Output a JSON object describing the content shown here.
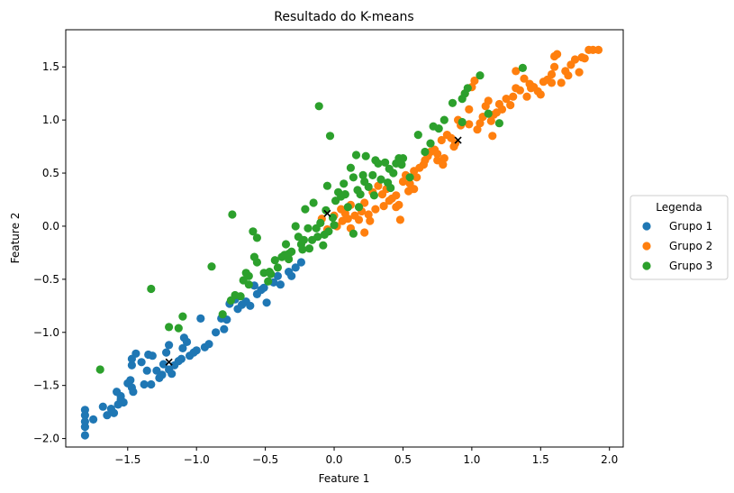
{
  "chart_data": {
    "type": "scatter",
    "title": "Resultado do K-means",
    "xlabel": "Feature 1",
    "ylabel": "Feature 2",
    "xlim": [
      -1.95,
      2.1
    ],
    "ylim": [
      -2.08,
      1.85
    ],
    "xticks": [
      -1.5,
      -1.0,
      -0.5,
      0.0,
      0.5,
      1.0,
      1.5,
      2.0
    ],
    "xtick_labels": [
      "−1.5",
      "−1.0",
      "−0.5",
      "0.0",
      "0.5",
      "1.0",
      "1.5",
      "2.0"
    ],
    "yticks": [
      -2.0,
      -1.5,
      -1.0,
      -0.5,
      0.0,
      0.5,
      1.0,
      1.5
    ],
    "ytick_labels": [
      "−2.0",
      "−1.5",
      "−1.0",
      "−0.5",
      "0.0",
      "0.5",
      "1.0",
      "1.5"
    ],
    "grid": false,
    "legend": {
      "title": "Legenda",
      "placement": "center-right-outside"
    },
    "series": [
      {
        "name": "Grupo 1",
        "color": "#1f77b4",
        "points": [
          [
            -1.81,
            -1.97
          ],
          [
            -1.81,
            -1.89
          ],
          [
            -1.81,
            -1.84
          ],
          [
            -1.81,
            -1.78
          ],
          [
            -1.81,
            -1.73
          ],
          [
            -1.75,
            -1.82
          ],
          [
            -1.68,
            -1.7
          ],
          [
            -1.65,
            -1.78
          ],
          [
            -1.62,
            -1.72
          ],
          [
            -1.6,
            -1.76
          ],
          [
            -1.58,
            -1.56
          ],
          [
            -1.57,
            -1.68
          ],
          [
            -1.55,
            -1.6
          ],
          [
            -1.53,
            -1.66
          ],
          [
            -1.5,
            -1.48
          ],
          [
            -1.48,
            -1.45
          ],
          [
            -1.47,
            -1.52
          ],
          [
            -1.46,
            -1.56
          ],
          [
            -1.47,
            -1.31
          ],
          [
            -1.47,
            -1.25
          ],
          [
            -1.44,
            -1.2
          ],
          [
            -1.4,
            -1.28
          ],
          [
            -1.38,
            -1.49
          ],
          [
            -1.36,
            -1.36
          ],
          [
            -1.33,
            -1.49
          ],
          [
            -1.32,
            -1.22
          ],
          [
            -1.29,
            -1.36
          ],
          [
            -1.27,
            -1.43
          ],
          [
            -1.25,
            -1.4
          ],
          [
            -1.24,
            -1.3
          ],
          [
            -1.22,
            -1.19
          ],
          [
            -1.2,
            -1.12
          ],
          [
            -1.2,
            -1.35
          ],
          [
            -1.18,
            -1.39
          ],
          [
            -1.16,
            -1.31
          ],
          [
            -1.13,
            -1.27
          ],
          [
            -1.11,
            -1.25
          ],
          [
            -1.1,
            -1.15
          ],
          [
            -1.09,
            -1.05
          ],
          [
            -1.07,
            -1.09
          ],
          [
            -1.05,
            -1.22
          ],
          [
            -1.02,
            -1.19
          ],
          [
            -1.0,
            -1.17
          ],
          [
            -0.94,
            -1.14
          ],
          [
            -0.91,
            -1.11
          ],
          [
            -0.86,
            -1.0
          ],
          [
            -0.82,
            -0.87
          ],
          [
            -0.8,
            -0.97
          ],
          [
            -0.78,
            -0.88
          ],
          [
            -0.76,
            -0.73
          ],
          [
            -0.72,
            -0.69
          ],
          [
            -0.7,
            -0.78
          ],
          [
            -0.67,
            -0.74
          ],
          [
            -0.64,
            -0.71
          ],
          [
            -0.61,
            -0.75
          ],
          [
            -0.58,
            -0.56
          ],
          [
            -0.56,
            -0.64
          ],
          [
            -0.53,
            -0.6
          ],
          [
            -0.51,
            -0.58
          ],
          [
            -0.49,
            -0.72
          ],
          [
            -0.44,
            -0.53
          ],
          [
            -0.41,
            -0.47
          ],
          [
            -0.39,
            -0.55
          ],
          [
            -0.33,
            -0.43
          ],
          [
            -0.31,
            -0.47
          ],
          [
            -0.28,
            -0.39
          ],
          [
            -0.24,
            -0.34
          ],
          [
            -0.97,
            -0.87
          ],
          [
            -1.35,
            -1.21
          ],
          [
            -1.55,
            -1.63
          ]
        ]
      },
      {
        "name": "Grupo 2",
        "color": "#ff7f0e",
        "points": [
          [
            -0.09,
            0.07
          ],
          [
            -0.05,
            -0.03
          ],
          [
            0.0,
            0.1
          ],
          [
            0.02,
            0.0
          ],
          [
            0.05,
            0.16
          ],
          [
            0.08,
            0.12
          ],
          [
            0.1,
            0.07
          ],
          [
            0.12,
            0.2
          ],
          [
            0.15,
            0.1
          ],
          [
            0.18,
            0.06
          ],
          [
            0.2,
            0.14
          ],
          [
            0.22,
            0.22
          ],
          [
            0.25,
            0.11
          ],
          [
            0.28,
            0.32
          ],
          [
            0.3,
            0.16
          ],
          [
            0.32,
            0.38
          ],
          [
            0.35,
            0.3
          ],
          [
            0.38,
            0.35
          ],
          [
            0.4,
            0.24
          ],
          [
            0.42,
            0.26
          ],
          [
            0.45,
            0.29
          ],
          [
            0.47,
            0.2
          ],
          [
            0.5,
            0.42
          ],
          [
            0.52,
            0.48
          ],
          [
            0.55,
            0.4
          ],
          [
            0.58,
            0.52
          ],
          [
            0.6,
            0.46
          ],
          [
            0.62,
            0.55
          ],
          [
            0.65,
            0.58
          ],
          [
            0.68,
            0.66
          ],
          [
            0.7,
            0.7
          ],
          [
            0.73,
            0.72
          ],
          [
            0.75,
            0.68
          ],
          [
            0.78,
            0.81
          ],
          [
            0.8,
            0.64
          ],
          [
            0.82,
            0.86
          ],
          [
            0.85,
            0.83
          ],
          [
            0.88,
            0.78
          ],
          [
            0.9,
            1.0
          ],
          [
            0.92,
            0.95
          ],
          [
            0.95,
            1.25
          ],
          [
            0.98,
            1.1
          ],
          [
            1.0,
            1.31
          ],
          [
            1.02,
            1.37
          ],
          [
            1.04,
            0.91
          ],
          [
            1.06,
            0.97
          ],
          [
            1.08,
            1.03
          ],
          [
            1.1,
            1.13
          ],
          [
            1.12,
            1.18
          ],
          [
            1.14,
            0.99
          ],
          [
            1.16,
            1.05
          ],
          [
            1.18,
            1.07
          ],
          [
            1.2,
            1.15
          ],
          [
            1.22,
            1.1
          ],
          [
            1.25,
            1.2
          ],
          [
            1.28,
            1.14
          ],
          [
            1.3,
            1.22
          ],
          [
            1.32,
            1.3
          ],
          [
            1.35,
            1.28
          ],
          [
            1.38,
            1.39
          ],
          [
            1.4,
            1.22
          ],
          [
            1.42,
            1.34
          ],
          [
            1.45,
            1.31
          ],
          [
            1.48,
            1.27
          ],
          [
            1.5,
            1.24
          ],
          [
            1.52,
            1.36
          ],
          [
            1.55,
            1.38
          ],
          [
            1.58,
            1.43
          ],
          [
            1.6,
            1.5
          ],
          [
            1.62,
            1.62
          ],
          [
            1.65,
            1.35
          ],
          [
            1.68,
            1.46
          ],
          [
            1.7,
            1.42
          ],
          [
            1.72,
            1.52
          ],
          [
            1.75,
            1.57
          ],
          [
            1.78,
            1.45
          ],
          [
            1.8,
            1.59
          ],
          [
            1.82,
            1.58
          ],
          [
            1.85,
            1.66
          ],
          [
            1.88,
            1.66
          ],
          [
            1.92,
            1.66
          ],
          [
            1.6,
            1.6
          ],
          [
            1.58,
            1.35
          ],
          [
            1.43,
            1.3
          ],
          [
            0.87,
            0.75
          ],
          [
            0.75,
            0.62
          ],
          [
            0.66,
            0.62
          ],
          [
            0.58,
            0.35
          ],
          [
            0.45,
            0.18
          ],
          [
            0.36,
            0.19
          ],
          [
            0.26,
            0.05
          ],
          [
            0.22,
            -0.06
          ],
          [
            0.12,
            -0.02
          ],
          [
            0.06,
            0.05
          ],
          [
            0.48,
            0.06
          ],
          [
            1.32,
            1.46
          ],
          [
            1.15,
            0.85
          ],
          [
            0.98,
            0.96
          ],
          [
            0.79,
            0.58
          ],
          [
            0.54,
            0.33
          ]
        ]
      },
      {
        "name": "Grupo 3",
        "color": "#2ca02c",
        "points": [
          [
            -1.7,
            -1.35
          ],
          [
            -1.33,
            -0.59
          ],
          [
            -1.2,
            -0.95
          ],
          [
            -1.13,
            -0.96
          ],
          [
            -1.1,
            -0.85
          ],
          [
            -0.89,
            -0.38
          ],
          [
            -0.81,
            -0.83
          ],
          [
            -0.75,
            -0.7
          ],
          [
            -0.74,
            0.11
          ],
          [
            -0.68,
            -0.66
          ],
          [
            -0.66,
            -0.51
          ],
          [
            -0.64,
            -0.44
          ],
          [
            -0.62,
            -0.47
          ],
          [
            -0.59,
            -0.05
          ],
          [
            -0.58,
            -0.29
          ],
          [
            -0.56,
            -0.34
          ],
          [
            -0.56,
            -0.11
          ],
          [
            -0.51,
            -0.44
          ],
          [
            -0.48,
            -0.52
          ],
          [
            -0.46,
            -0.45
          ],
          [
            -0.43,
            -0.32
          ],
          [
            -0.41,
            -0.39
          ],
          [
            -0.38,
            -0.29
          ],
          [
            -0.36,
            -0.27
          ],
          [
            -0.35,
            -0.17
          ],
          [
            -0.33,
            -0.31
          ],
          [
            -0.31,
            -0.24
          ],
          [
            -0.28,
            0.0
          ],
          [
            -0.26,
            -0.1
          ],
          [
            -0.24,
            -0.17
          ],
          [
            -0.22,
            -0.13
          ],
          [
            -0.21,
            0.16
          ],
          [
            -0.19,
            -0.02
          ],
          [
            -0.18,
            -0.21
          ],
          [
            -0.16,
            -0.13
          ],
          [
            -0.15,
            0.22
          ],
          [
            -0.13,
            -0.02
          ],
          [
            -0.12,
            -0.1
          ],
          [
            -0.11,
            1.13
          ],
          [
            -0.1,
            0.03
          ],
          [
            -0.08,
            -0.18
          ],
          [
            -0.06,
            0.15
          ],
          [
            -0.04,
            -0.05
          ],
          [
            -0.03,
            0.85
          ],
          [
            -0.01,
            0.08
          ],
          [
            0.01,
            0.24
          ],
          [
            0.03,
            0.32
          ],
          [
            0.05,
            0.28
          ],
          [
            0.07,
            0.4
          ],
          [
            0.08,
            0.3
          ],
          [
            0.1,
            0.18
          ],
          [
            0.12,
            0.55
          ],
          [
            0.14,
            0.46
          ],
          [
            0.16,
            0.67
          ],
          [
            0.17,
            0.34
          ],
          [
            0.19,
            0.3
          ],
          [
            0.21,
            0.48
          ],
          [
            0.23,
            0.66
          ],
          [
            0.25,
            0.37
          ],
          [
            0.28,
            0.48
          ],
          [
            0.3,
            0.62
          ],
          [
            0.32,
            0.59
          ],
          [
            0.34,
            0.44
          ],
          [
            0.37,
            0.6
          ],
          [
            0.39,
            0.41
          ],
          [
            0.41,
            0.36
          ],
          [
            0.43,
            0.5
          ],
          [
            0.45,
            0.59
          ],
          [
            0.47,
            0.64
          ],
          [
            0.5,
            0.64
          ],
          [
            0.55,
            0.46
          ],
          [
            0.61,
            0.86
          ],
          [
            0.66,
            0.7
          ],
          [
            0.7,
            0.78
          ],
          [
            0.76,
            0.92
          ],
          [
            0.8,
            1.0
          ],
          [
            0.86,
            1.16
          ],
          [
            0.93,
            1.2
          ],
          [
            0.95,
            1.25
          ],
          [
            0.97,
            1.3
          ],
          [
            1.06,
            1.42
          ],
          [
            1.12,
            1.06
          ],
          [
            1.2,
            0.97
          ],
          [
            1.37,
            1.49
          ],
          [
            0.93,
            0.98
          ],
          [
            0.72,
            0.94
          ],
          [
            0.49,
            0.58
          ],
          [
            0.29,
            0.29
          ],
          [
            0.18,
            0.18
          ],
          [
            0.0,
            0.01
          ],
          [
            -0.07,
            -0.08
          ],
          [
            -0.23,
            -0.22
          ],
          [
            -0.33,
            -0.26
          ],
          [
            -0.47,
            -0.43
          ],
          [
            -0.62,
            -0.55
          ],
          [
            -0.72,
            -0.65
          ],
          [
            -0.05,
            0.38
          ],
          [
            0.22,
            0.42
          ],
          [
            0.4,
            0.54
          ],
          [
            0.14,
            -0.07
          ]
        ]
      }
    ],
    "centroids": {
      "marker": "x",
      "color": "#000000",
      "points": [
        [
          -1.2,
          -1.28
        ],
        [
          -0.05,
          0.12
        ],
        [
          0.9,
          0.81
        ]
      ]
    }
  }
}
